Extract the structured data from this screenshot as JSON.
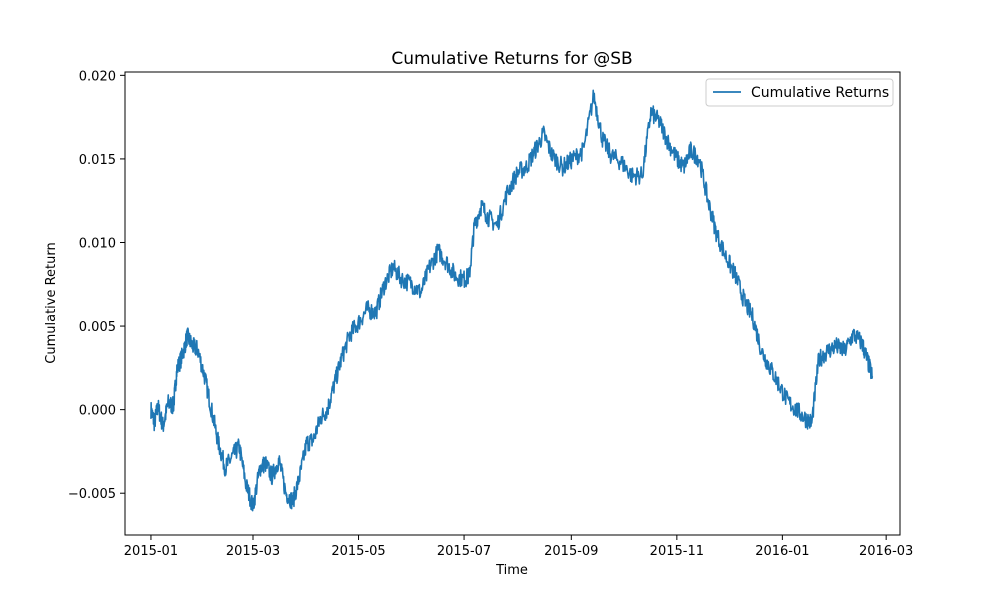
{
  "chart_data": {
    "type": "line",
    "title": "Cumulative Returns for @SB",
    "xlabel": "Time",
    "ylabel": "Cumulative Return",
    "x_ticks": [
      "2015-01",
      "2015-03",
      "2015-05",
      "2015-07",
      "2015-09",
      "2015-11",
      "2016-01",
      "2016-03"
    ],
    "y_ticks": [
      "−0.005",
      "0.000",
      "0.005",
      "0.010",
      "0.015",
      "0.020"
    ],
    "ylim": [
      -0.0075,
      0.0202
    ],
    "xlim": [
      "2014-12-17",
      "2016-03-09"
    ],
    "grid": false,
    "legend_position": "top-right",
    "series": [
      {
        "name": "Cumulative Returns",
        "color": "#1f77b4",
        "points": [
          [
            "2015-01-01",
            0.0
          ],
          [
            "2015-01-03",
            -0.0008
          ],
          [
            "2015-01-05",
            0.0002
          ],
          [
            "2015-01-08",
            -0.001
          ],
          [
            "2015-01-11",
            0.0004
          ],
          [
            "2015-01-14",
            0.0002
          ],
          [
            "2015-01-16",
            0.0024
          ],
          [
            "2015-01-19",
            0.0032
          ],
          [
            "2015-01-22",
            0.0044
          ],
          [
            "2015-01-25",
            0.0038
          ],
          [
            "2015-01-28",
            0.0036
          ],
          [
            "2015-02-01",
            0.002
          ],
          [
            "2015-02-05",
            0.0
          ],
          [
            "2015-02-09",
            -0.002
          ],
          [
            "2015-02-13",
            -0.0035
          ],
          [
            "2015-02-17",
            -0.0028
          ],
          [
            "2015-02-21",
            -0.0022
          ],
          [
            "2015-02-25",
            -0.0045
          ],
          [
            "2015-03-01",
            -0.0058
          ],
          [
            "2015-03-05",
            -0.0035
          ],
          [
            "2015-03-08",
            -0.0032
          ],
          [
            "2015-03-12",
            -0.004
          ],
          [
            "2015-03-16",
            -0.003
          ],
          [
            "2015-03-20",
            -0.005
          ],
          [
            "2015-03-24",
            -0.0055
          ],
          [
            "2015-03-28",
            -0.004
          ],
          [
            "2015-04-01",
            -0.002
          ],
          [
            "2015-04-05",
            -0.0018
          ],
          [
            "2015-04-09",
            -0.0005
          ],
          [
            "2015-04-13",
            0.0
          ],
          [
            "2015-04-17",
            0.0015
          ],
          [
            "2015-04-21",
            0.003
          ],
          [
            "2015-04-26",
            0.0045
          ],
          [
            "2015-05-01",
            0.0052
          ],
          [
            "2015-05-06",
            0.006
          ],
          [
            "2015-05-11",
            0.0058
          ],
          [
            "2015-05-16",
            0.0075
          ],
          [
            "2015-05-21",
            0.0085
          ],
          [
            "2015-05-26",
            0.0078
          ],
          [
            "2015-06-01",
            0.0075
          ],
          [
            "2015-06-06",
            0.007
          ],
          [
            "2015-06-11",
            0.0085
          ],
          [
            "2015-06-16",
            0.0095
          ],
          [
            "2015-06-21",
            0.0088
          ],
          [
            "2015-06-26",
            0.008
          ],
          [
            "2015-07-01",
            0.0078
          ],
          [
            "2015-07-04",
            0.008
          ],
          [
            "2015-07-07",
            0.011
          ],
          [
            "2015-07-11",
            0.0122
          ],
          [
            "2015-07-15",
            0.0115
          ],
          [
            "2015-07-20",
            0.011
          ],
          [
            "2015-07-26",
            0.013
          ],
          [
            "2015-08-01",
            0.0142
          ],
          [
            "2015-08-06",
            0.0145
          ],
          [
            "2015-08-11",
            0.0155
          ],
          [
            "2015-08-16",
            0.0165
          ],
          [
            "2015-08-21",
            0.0152
          ],
          [
            "2015-08-27",
            0.0145
          ],
          [
            "2015-09-02",
            0.015
          ],
          [
            "2015-09-08",
            0.0155
          ],
          [
            "2015-09-14",
            0.0188
          ],
          [
            "2015-09-19",
            0.0162
          ],
          [
            "2015-09-24",
            0.0152
          ],
          [
            "2015-09-30",
            0.0148
          ],
          [
            "2015-10-06",
            0.014
          ],
          [
            "2015-10-12",
            0.014
          ],
          [
            "2015-10-17",
            0.0178
          ],
          [
            "2015-10-22",
            0.0172
          ],
          [
            "2015-10-27",
            0.016
          ],
          [
            "2015-11-01",
            0.015
          ],
          [
            "2015-11-05",
            0.0145
          ],
          [
            "2015-11-09",
            0.0155
          ],
          [
            "2015-11-14",
            0.015
          ],
          [
            "2015-11-19",
            0.0125
          ],
          [
            "2015-11-24",
            0.0105
          ],
          [
            "2015-11-30",
            0.009
          ],
          [
            "2015-12-05",
            0.008
          ],
          [
            "2015-12-10",
            0.0065
          ],
          [
            "2015-12-15",
            0.0055
          ],
          [
            "2015-12-20",
            0.0035
          ],
          [
            "2015-12-25",
            0.0025
          ],
          [
            "2015-12-30",
            0.0015
          ],
          [
            "2016-01-04",
            0.0005
          ],
          [
            "2016-01-09",
            0.0
          ],
          [
            "2016-01-14",
            -0.0005
          ],
          [
            "2016-01-18",
            -0.0008
          ],
          [
            "2016-01-22",
            0.003
          ],
          [
            "2016-01-27",
            0.0035
          ],
          [
            "2016-02-01",
            0.0038
          ],
          [
            "2016-02-06",
            0.0035
          ],
          [
            "2016-02-11",
            0.0045
          ],
          [
            "2016-02-16",
            0.004
          ],
          [
            "2016-02-19",
            0.003
          ],
          [
            "2016-02-22",
            0.002
          ]
        ]
      }
    ]
  }
}
